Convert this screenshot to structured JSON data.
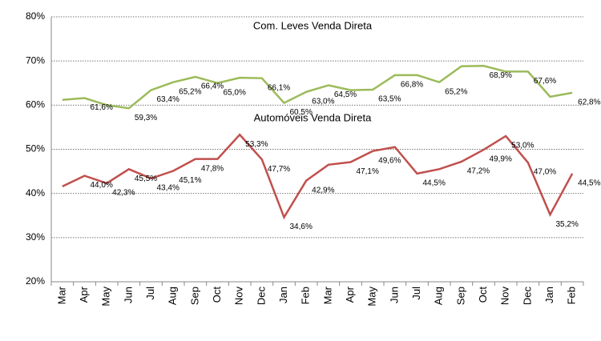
{
  "chart_data": {
    "type": "line",
    "categories": [
      "Mar",
      "Apr",
      "May",
      "Jun",
      "Jul",
      "Aug",
      "Sep",
      "Oct",
      "Nov",
      "Dec",
      "Jan",
      "Feb",
      "Mar",
      "Apr",
      "May",
      "Jun",
      "Jul",
      "Aug",
      "Sep",
      "Oct",
      "Nov",
      "Dec",
      "Jan",
      "Feb"
    ],
    "series": [
      {
        "name": "Com. Leves Venda Direta",
        "color": "#9bbb59",
        "values": [
          61.2,
          61.6,
          60.0,
          59.3,
          63.4,
          65.2,
          66.4,
          65.0,
          66.2,
          66.1,
          60.5,
          63.0,
          64.5,
          63.4,
          63.5,
          66.8,
          66.8,
          65.2,
          68.8,
          68.9,
          67.6,
          67.6,
          61.9,
          62.8
        ],
        "value_labels": [
          null,
          "61,6%",
          null,
          "59,3%",
          "63,4%",
          "65,2%",
          "66,4%",
          "65,0%",
          null,
          "66,1%",
          "60,5%",
          "63,0%",
          "64,5%",
          null,
          "63,5%",
          "66,8%",
          null,
          "65,2%",
          null,
          "68,9%",
          null,
          "67,6%",
          null,
          "62,8%"
        ]
      },
      {
        "name": "Automóveis Venda Direta",
        "color": "#c0504d",
        "values": [
          41.6,
          44.0,
          42.3,
          45.5,
          43.4,
          45.1,
          47.8,
          47.8,
          53.3,
          47.7,
          34.6,
          42.9,
          46.5,
          47.1,
          49.6,
          50.5,
          44.5,
          45.5,
          47.2,
          49.9,
          53.0,
          47.0,
          35.2,
          44.5
        ],
        "value_labels": [
          null,
          "44,0%",
          "42,3%",
          "45,5%",
          "43,4%",
          "45,1%",
          "47,8%",
          null,
          "53,3%",
          "47,7%",
          "34,6%",
          "42,9%",
          null,
          "47,1%",
          "49,6%",
          null,
          "44,5%",
          null,
          "47,2%",
          "49,9%",
          "53,0%",
          "47,0%",
          "35,2%",
          "44,5%"
        ]
      }
    ],
    "ylim": [
      20,
      80
    ],
    "yticks": [
      {
        "value": 20,
        "label": "20%"
      },
      {
        "value": 30,
        "label": "30%"
      },
      {
        "value": 40,
        "label": "40%"
      },
      {
        "value": 50,
        "label": "50%"
      },
      {
        "value": 60,
        "label": "60%"
      },
      {
        "value": 70,
        "label": "70%"
      },
      {
        "value": 80,
        "label": "80%"
      }
    ],
    "grid": true
  }
}
